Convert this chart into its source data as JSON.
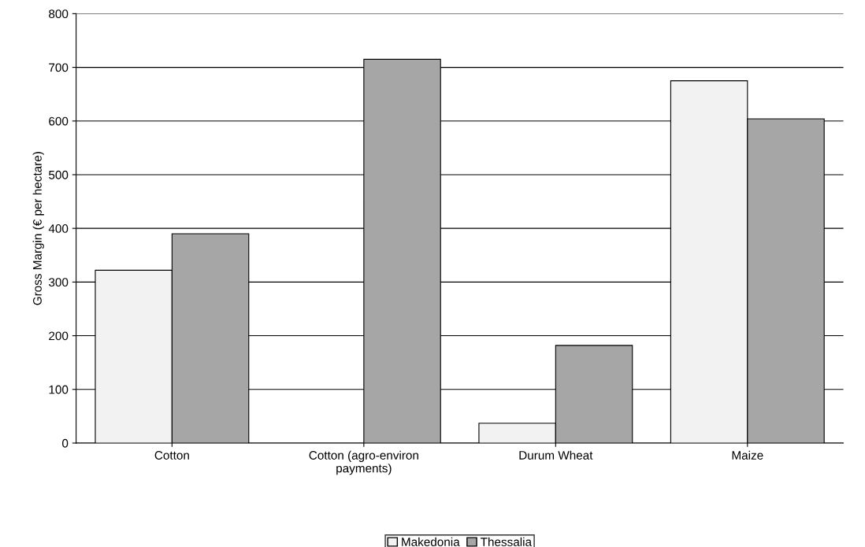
{
  "chart_data": {
    "type": "bar",
    "ylabel": "Gross Margin (€ per hectare)",
    "categories": [
      "Cotton",
      "Cotton (agro-environ\npayments)",
      "Durum Wheat",
      "Maize"
    ],
    "series": [
      {
        "name": "Makedonia",
        "color": "#f2f2f2",
        "values": [
          322,
          null,
          37,
          675
        ]
      },
      {
        "name": "Thessalia",
        "color": "#a6a6a6",
        "values": [
          390,
          715,
          182,
          604
        ]
      }
    ],
    "ylim": [
      0,
      800
    ],
    "yticks": [
      0,
      100,
      200,
      300,
      400,
      500,
      600,
      700,
      800
    ],
    "grid": "y",
    "legend": "bottom"
  }
}
